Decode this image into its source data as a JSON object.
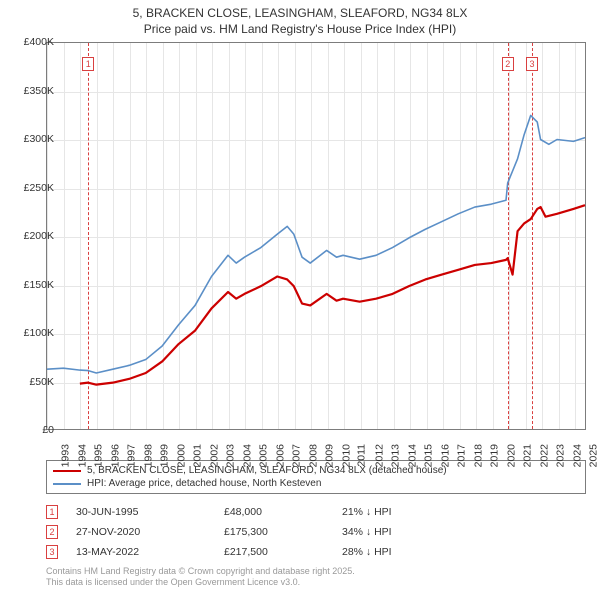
{
  "title": {
    "line1": "5, BRACKEN CLOSE, LEASINGHAM, SLEAFORD, NG34 8LX",
    "line2": "Price paid vs. HM Land Registry's House Price Index (HPI)",
    "fontsize": 12,
    "color": "#333333"
  },
  "chart": {
    "type": "line",
    "background": "#ffffff",
    "border_color": "#7c7c7c",
    "grid_color": "#e6e6e6",
    "x_range": [
      1993,
      2025.7
    ],
    "y_range": [
      0,
      400000
    ],
    "y_ticks": [
      {
        "v": 0,
        "label": "£0"
      },
      {
        "v": 50000,
        "label": "£50K"
      },
      {
        "v": 100000,
        "label": "£100K"
      },
      {
        "v": 150000,
        "label": "£150K"
      },
      {
        "v": 200000,
        "label": "£200K"
      },
      {
        "v": 250000,
        "label": "£250K"
      },
      {
        "v": 300000,
        "label": "£300K"
      },
      {
        "v": 350000,
        "label": "£350K"
      },
      {
        "v": 400000,
        "label": "£400K"
      }
    ],
    "x_ticks": [
      1993,
      1994,
      1995,
      1996,
      1997,
      1998,
      1999,
      2000,
      2001,
      2002,
      2003,
      2004,
      2005,
      2006,
      2007,
      2008,
      2009,
      2010,
      2011,
      2012,
      2013,
      2014,
      2015,
      2016,
      2017,
      2018,
      2019,
      2020,
      2021,
      2022,
      2023,
      2024,
      2025
    ],
    "series": [
      {
        "name": "property",
        "label": "5, BRACKEN CLOSE, LEASINGHAM, SLEAFORD, NG34 8LX (detached house)",
        "color": "#cc0000",
        "line_width": 2.2,
        "data": [
          [
            1995.0,
            47000
          ],
          [
            1995.5,
            48000
          ],
          [
            1996,
            46000
          ],
          [
            1997,
            48000
          ],
          [
            1998,
            52000
          ],
          [
            1999,
            58000
          ],
          [
            2000,
            70000
          ],
          [
            2001,
            88000
          ],
          [
            2002,
            102000
          ],
          [
            2003,
            125000
          ],
          [
            2004,
            142000
          ],
          [
            2004.5,
            135000
          ],
          [
            2005,
            140000
          ],
          [
            2006,
            148000
          ],
          [
            2007,
            158000
          ],
          [
            2007.6,
            155000
          ],
          [
            2008,
            148000
          ],
          [
            2008.5,
            130000
          ],
          [
            2009,
            128000
          ],
          [
            2010,
            140000
          ],
          [
            2010.6,
            133000
          ],
          [
            2011,
            135000
          ],
          [
            2012,
            132000
          ],
          [
            2013,
            135000
          ],
          [
            2014,
            140000
          ],
          [
            2015,
            148000
          ],
          [
            2016,
            155000
          ],
          [
            2017,
            160000
          ],
          [
            2018,
            165000
          ],
          [
            2019,
            170000
          ],
          [
            2020,
            172000
          ],
          [
            2020.9,
            175300
          ],
          [
            2021,
            177000
          ],
          [
            2021.3,
            160000
          ],
          [
            2021.6,
            205000
          ],
          [
            2022,
            213000
          ],
          [
            2022.4,
            217500
          ],
          [
            2022.8,
            228000
          ],
          [
            2023,
            230000
          ],
          [
            2023.3,
            220000
          ],
          [
            2024,
            223000
          ],
          [
            2025,
            228000
          ],
          [
            2025.7,
            232000
          ]
        ]
      },
      {
        "name": "hpi",
        "label": "HPI: Average price, detached house, North Kesteven",
        "color": "#5b8fc7",
        "line_width": 1.6,
        "data": [
          [
            1993,
            62000
          ],
          [
            1994,
            63000
          ],
          [
            1995,
            61000
          ],
          [
            1995.5,
            60500
          ],
          [
            1996,
            58000
          ],
          [
            1997,
            62000
          ],
          [
            1998,
            66000
          ],
          [
            1999,
            72000
          ],
          [
            2000,
            86000
          ],
          [
            2001,
            108000
          ],
          [
            2002,
            128000
          ],
          [
            2003,
            158000
          ],
          [
            2004,
            180000
          ],
          [
            2004.5,
            172000
          ],
          [
            2005,
            178000
          ],
          [
            2006,
            188000
          ],
          [
            2007,
            202000
          ],
          [
            2007.6,
            210000
          ],
          [
            2008,
            202000
          ],
          [
            2008.5,
            178000
          ],
          [
            2009,
            172000
          ],
          [
            2010,
            185000
          ],
          [
            2010.6,
            178000
          ],
          [
            2011,
            180000
          ],
          [
            2012,
            176000
          ],
          [
            2013,
            180000
          ],
          [
            2014,
            188000
          ],
          [
            2015,
            198000
          ],
          [
            2016,
            207000
          ],
          [
            2017,
            215000
          ],
          [
            2018,
            223000
          ],
          [
            2019,
            230000
          ],
          [
            2020,
            233000
          ],
          [
            2020.9,
            237000
          ],
          [
            2021,
            255000
          ],
          [
            2021.6,
            280000
          ],
          [
            2022,
            305000
          ],
          [
            2022.4,
            325000
          ],
          [
            2022.8,
            318000
          ],
          [
            2023,
            300000
          ],
          [
            2023.5,
            295000
          ],
          [
            2024,
            300000
          ],
          [
            2025,
            298000
          ],
          [
            2025.7,
            302000
          ]
        ]
      }
    ],
    "markers": [
      {
        "num": "1",
        "x": 1995.5,
        "top_offset": 14
      },
      {
        "num": "2",
        "x": 2020.9,
        "top_offset": 14
      },
      {
        "num": "3",
        "x": 2022.37,
        "top_offset": 14
      }
    ]
  },
  "legend": {
    "items": [
      {
        "color": "#cc0000",
        "label": "5, BRACKEN CLOSE, LEASINGHAM, SLEAFORD, NG34 8LX (detached house)"
      },
      {
        "color": "#5b8fc7",
        "label": "HPI: Average price, detached house, North Kesteven"
      }
    ]
  },
  "transactions": [
    {
      "num": "1",
      "date": "30-JUN-1995",
      "price": "£48,000",
      "diff": "21% ↓ HPI"
    },
    {
      "num": "2",
      "date": "27-NOV-2020",
      "price": "£175,300",
      "diff": "34% ↓ HPI"
    },
    {
      "num": "3",
      "date": "13-MAY-2022",
      "price": "£217,500",
      "diff": "28% ↓ HPI"
    }
  ],
  "footer": {
    "line1": "Contains HM Land Registry data © Crown copyright and database right 2025.",
    "line2": "This data is licensed under the Open Government Licence v3.0."
  }
}
